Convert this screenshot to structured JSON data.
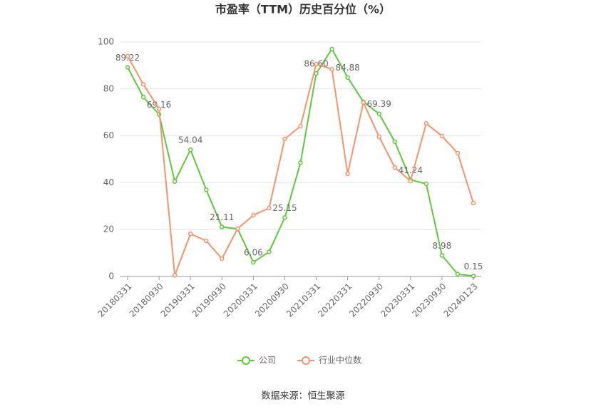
{
  "chart_data": {
    "type": "line",
    "title": "市盈率（TTM）历史百分位（%）",
    "source": "数据来源：恒生聚源",
    "categories": [
      "20180331",
      null,
      "20180930",
      null,
      "20190331",
      null,
      "20190930",
      null,
      "20200331",
      null,
      "20200930",
      null,
      "20210331",
      null,
      "20220331",
      null,
      "20220930",
      null,
      "20230331",
      null,
      "20230930",
      null,
      "20240123"
    ],
    "series": [
      {
        "name": "公司",
        "color": "#5ec93a",
        "values": [
          89.22,
          76.5,
          69.16,
          40.5,
          54.04,
          37,
          21.11,
          20.3,
          6.06,
          10.5,
          25.15,
          48.5,
          86.6,
          97,
          84.88,
          74.5,
          69.39,
          57.5,
          41.24,
          39.5,
          8.98,
          1,
          0.15
        ],
        "value_labels": [
          "89.22",
          null,
          "69.16",
          null,
          "54.04",
          null,
          "21.11",
          null,
          "6.06",
          null,
          "25.15",
          null,
          "86.60",
          null,
          "84.88",
          null,
          "69.39",
          null,
          "41.24",
          null,
          "8.98",
          null,
          "0.15"
        ]
      },
      {
        "name": "行业中位数",
        "color": "#f5946a",
        "values": [
          94,
          82,
          71.5,
          0.5,
          18.2,
          15.2,
          7.6,
          20.4,
          26.1,
          29.2,
          58.7,
          64.1,
          90.6,
          88.4,
          43.8,
          74.2,
          59.6,
          46.5,
          40.7,
          65.3,
          59.9,
          52.6,
          31.3
        ]
      }
    ],
    "ylim": [
      0,
      100
    ],
    "yticks": [
      0,
      20,
      40,
      60,
      80,
      100
    ],
    "grid": true,
    "legend": "bottom"
  }
}
